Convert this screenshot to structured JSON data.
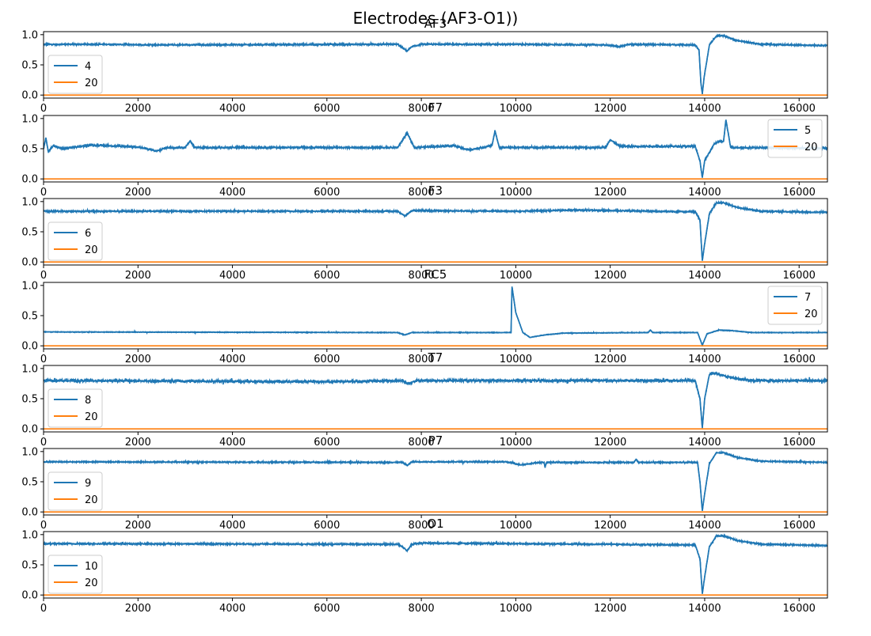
{
  "figure": {
    "suptitle": "Electrodes (AF3-O1))"
  },
  "colors": {
    "signal": "#1f77b4",
    "label": "#ff7f0e",
    "axis": "#000000"
  },
  "chart_data": [
    {
      "type": "line",
      "title": "AF3",
      "xlim": [
        0,
        16600
      ],
      "ylim": [
        -0.05,
        1.05
      ],
      "xticks": [
        0,
        2000,
        4000,
        6000,
        8000,
        10000,
        12000,
        14000,
        16000
      ],
      "yticks": [
        "0.0",
        "0.5",
        "1.0"
      ],
      "legend_position": "lower-left",
      "series": [
        {
          "name": "4",
          "baseline": 0.83,
          "noise": 0.012,
          "points": [
            [
              0,
              0.84
            ],
            [
              1200,
              0.84
            ],
            [
              2500,
              0.83
            ],
            [
              7500,
              0.84
            ],
            [
              7600,
              0.78
            ],
            [
              7700,
              0.73
            ],
            [
              7800,
              0.8
            ],
            [
              8000,
              0.84
            ],
            [
              10000,
              0.84
            ],
            [
              11900,
              0.83
            ],
            [
              12200,
              0.8
            ],
            [
              12400,
              0.84
            ],
            [
              13800,
              0.83
            ],
            [
              13880,
              0.75
            ],
            [
              13920,
              0.2
            ],
            [
              13950,
              0.02
            ],
            [
              13990,
              0.3
            ],
            [
              14100,
              0.83
            ],
            [
              14250,
              0.98
            ],
            [
              14400,
              0.98
            ],
            [
              14700,
              0.9
            ],
            [
              15200,
              0.84
            ],
            [
              16600,
              0.82
            ]
          ]
        },
        {
          "name": "20",
          "points": [
            [
              0,
              0.0
            ],
            [
              16600,
              0.0
            ]
          ]
        }
      ]
    },
    {
      "type": "line",
      "title": "F7",
      "xlim": [
        0,
        16600
      ],
      "ylim": [
        -0.05,
        1.05
      ],
      "xticks": [
        0,
        2000,
        4000,
        6000,
        8000,
        10000,
        12000,
        14000,
        16000
      ],
      "yticks": [
        "0.0",
        "0.5",
        "1.0"
      ],
      "legend_position": "upper-right",
      "series": [
        {
          "name": "5",
          "baseline": 0.52,
          "noise": 0.015,
          "points": [
            [
              0,
              0.5
            ],
            [
              50,
              0.68
            ],
            [
              100,
              0.45
            ],
            [
              200,
              0.55
            ],
            [
              400,
              0.5
            ],
            [
              1000,
              0.56
            ],
            [
              2000,
              0.53
            ],
            [
              2400,
              0.46
            ],
            [
              2600,
              0.52
            ],
            [
              3000,
              0.52
            ],
            [
              3100,
              0.63
            ],
            [
              3200,
              0.52
            ],
            [
              7500,
              0.52
            ],
            [
              7700,
              0.76
            ],
            [
              7850,
              0.52
            ],
            [
              8700,
              0.55
            ],
            [
              9000,
              0.48
            ],
            [
              9300,
              0.52
            ],
            [
              9500,
              0.56
            ],
            [
              9560,
              0.8
            ],
            [
              9650,
              0.52
            ],
            [
              11900,
              0.52
            ],
            [
              12000,
              0.65
            ],
            [
              12200,
              0.54
            ],
            [
              13800,
              0.54
            ],
            [
              13900,
              0.3
            ],
            [
              13950,
              0.02
            ],
            [
              14000,
              0.3
            ],
            [
              14200,
              0.58
            ],
            [
              14300,
              0.62
            ],
            [
              14400,
              0.62
            ],
            [
              14450,
              0.98
            ],
            [
              14550,
              0.52
            ],
            [
              16600,
              0.51
            ]
          ]
        },
        {
          "name": "20",
          "points": [
            [
              0,
              0.0
            ],
            [
              16600,
              0.0
            ]
          ]
        }
      ]
    },
    {
      "type": "line",
      "title": "F3",
      "xlim": [
        0,
        16600
      ],
      "ylim": [
        -0.05,
        1.05
      ],
      "xticks": [
        0,
        2000,
        4000,
        6000,
        8000,
        10000,
        12000,
        14000,
        16000
      ],
      "yticks": [
        "0.0",
        "0.5",
        "1.0"
      ],
      "legend_position": "lower-left",
      "series": [
        {
          "name": "6",
          "baseline": 0.83,
          "noise": 0.012,
          "points": [
            [
              0,
              0.84
            ],
            [
              7500,
              0.84
            ],
            [
              7650,
              0.76
            ],
            [
              7800,
              0.85
            ],
            [
              10000,
              0.84
            ],
            [
              11300,
              0.86
            ],
            [
              13800,
              0.83
            ],
            [
              13900,
              0.7
            ],
            [
              13950,
              0.02
            ],
            [
              14000,
              0.3
            ],
            [
              14100,
              0.8
            ],
            [
              14250,
              0.98
            ],
            [
              14400,
              0.98
            ],
            [
              14700,
              0.9
            ],
            [
              15200,
              0.84
            ],
            [
              16600,
              0.82
            ]
          ]
        },
        {
          "name": "20",
          "points": [
            [
              0,
              0.0
            ],
            [
              16600,
              0.0
            ]
          ]
        }
      ]
    },
    {
      "type": "line",
      "title": "FC5",
      "xlim": [
        0,
        16600
      ],
      "ylim": [
        -0.05,
        1.05
      ],
      "xticks": [
        0,
        2000,
        4000,
        6000,
        8000,
        10000,
        12000,
        14000,
        16000
      ],
      "yticks": [
        "0.0",
        "0.5",
        "1.0"
      ],
      "legend_position": "upper-right",
      "series": [
        {
          "name": "7",
          "baseline": 0.22,
          "noise": 0.005,
          "points": [
            [
              0,
              0.23
            ],
            [
              7500,
              0.22
            ],
            [
              7650,
              0.18
            ],
            [
              7800,
              0.22
            ],
            [
              9900,
              0.22
            ],
            [
              9920,
              0.98
            ],
            [
              10000,
              0.55
            ],
            [
              10150,
              0.22
            ],
            [
              10300,
              0.14
            ],
            [
              10600,
              0.18
            ],
            [
              11000,
              0.21
            ],
            [
              12800,
              0.22
            ],
            [
              12850,
              0.26
            ],
            [
              12900,
              0.22
            ],
            [
              13850,
              0.22
            ],
            [
              13950,
              0.01
            ],
            [
              14050,
              0.2
            ],
            [
              14300,
              0.26
            ],
            [
              14600,
              0.25
            ],
            [
              15000,
              0.22
            ],
            [
              16600,
              0.22
            ]
          ]
        },
        {
          "name": "20",
          "points": [
            [
              0,
              0.0
            ],
            [
              16600,
              0.0
            ]
          ]
        }
      ]
    },
    {
      "type": "line",
      "title": "T7",
      "xlim": [
        0,
        16600
      ],
      "ylim": [
        -0.05,
        1.05
      ],
      "xticks": [
        0,
        2000,
        4000,
        6000,
        8000,
        10000,
        12000,
        14000,
        16000
      ],
      "yticks": [
        "0.0",
        "0.5",
        "1.0"
      ],
      "legend_position": "lower-left",
      "series": [
        {
          "name": "8",
          "baseline": 0.8,
          "noise": 0.02,
          "points": [
            [
              0,
              0.8
            ],
            [
              6000,
              0.78
            ],
            [
              7600,
              0.8
            ],
            [
              7700,
              0.75
            ],
            [
              7900,
              0.8
            ],
            [
              13800,
              0.8
            ],
            [
              13900,
              0.5
            ],
            [
              13950,
              0.02
            ],
            [
              14000,
              0.5
            ],
            [
              14100,
              0.9
            ],
            [
              14200,
              0.92
            ],
            [
              14500,
              0.86
            ],
            [
              15000,
              0.8
            ],
            [
              16600,
              0.8
            ]
          ]
        },
        {
          "name": "20",
          "points": [
            [
              0,
              0.0
            ],
            [
              16600,
              0.0
            ]
          ]
        }
      ]
    },
    {
      "type": "line",
      "title": "P7",
      "xlim": [
        0,
        16600
      ],
      "ylim": [
        -0.05,
        1.05
      ],
      "xticks": [
        0,
        2000,
        4000,
        6000,
        8000,
        10000,
        12000,
        14000,
        16000
      ],
      "yticks": [
        "0.0",
        "0.5",
        "1.0"
      ],
      "legend_position": "lower-left",
      "series": [
        {
          "name": "9",
          "baseline": 0.82,
          "noise": 0.01,
          "points": [
            [
              0,
              0.83
            ],
            [
              7600,
              0.82
            ],
            [
              7700,
              0.77
            ],
            [
              7800,
              0.83
            ],
            [
              9800,
              0.83
            ],
            [
              10100,
              0.78
            ],
            [
              10500,
              0.82
            ],
            [
              10600,
              0.82
            ],
            [
              10620,
              0.74
            ],
            [
              10650,
              0.82
            ],
            [
              12500,
              0.82
            ],
            [
              12550,
              0.87
            ],
            [
              12600,
              0.82
            ],
            [
              13850,
              0.82
            ],
            [
              13900,
              0.5
            ],
            [
              13950,
              0.02
            ],
            [
              14000,
              0.3
            ],
            [
              14100,
              0.8
            ],
            [
              14250,
              0.98
            ],
            [
              14400,
              0.98
            ],
            [
              14700,
              0.9
            ],
            [
              15200,
              0.84
            ],
            [
              16600,
              0.82
            ]
          ]
        },
        {
          "name": "20",
          "points": [
            [
              0,
              0.0
            ],
            [
              16600,
              0.0
            ]
          ]
        }
      ]
    },
    {
      "type": "line",
      "title": "O1",
      "xlim": [
        0,
        16600
      ],
      "ylim": [
        -0.05,
        1.05
      ],
      "xticks": [
        0,
        2000,
        4000,
        6000,
        8000,
        10000,
        12000,
        14000,
        16000
      ],
      "yticks": [
        "0.0",
        "0.5",
        "1.0"
      ],
      "legend_position": "lower-left",
      "series": [
        {
          "name": "10",
          "baseline": 0.83,
          "noise": 0.012,
          "points": [
            [
              0,
              0.85
            ],
            [
              7500,
              0.84
            ],
            [
              7600,
              0.8
            ],
            [
              7700,
              0.73
            ],
            [
              7800,
              0.84
            ],
            [
              8000,
              0.86
            ],
            [
              13800,
              0.83
            ],
            [
              13900,
              0.6
            ],
            [
              13950,
              0.02
            ],
            [
              14000,
              0.3
            ],
            [
              14100,
              0.8
            ],
            [
              14250,
              0.98
            ],
            [
              14400,
              0.98
            ],
            [
              14700,
              0.9
            ],
            [
              15200,
              0.84
            ],
            [
              16600,
              0.82
            ]
          ]
        },
        {
          "name": "20",
          "points": [
            [
              0,
              0.0
            ],
            [
              16600,
              0.0
            ]
          ]
        }
      ]
    }
  ]
}
